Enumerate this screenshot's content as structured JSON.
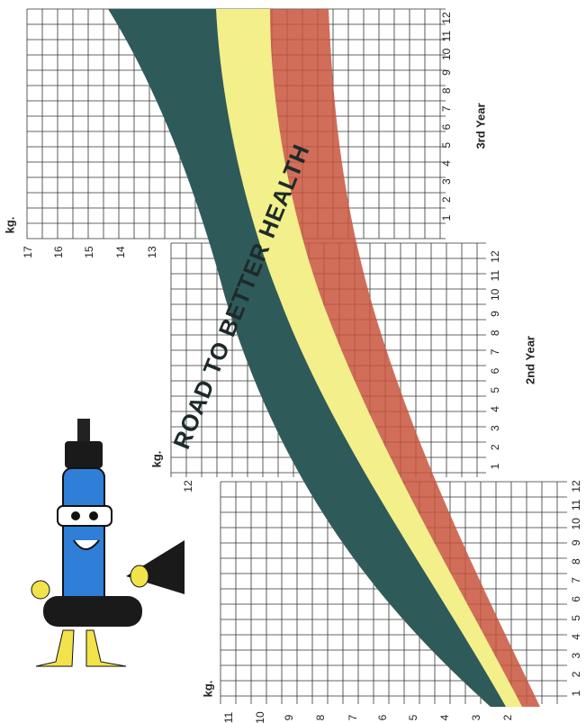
{
  "panels": [
    {
      "kg_unit": "kg.",
      "kg_labels": [
        "11",
        "10",
        "9",
        "8",
        "7",
        "6",
        "5",
        "4",
        "3",
        "2"
      ],
      "months": [
        "1",
        "2",
        "3",
        "4",
        "5",
        "6",
        "7",
        "8",
        "9",
        "10",
        "11",
        "12"
      ]
    },
    {
      "kg_unit": "kg.",
      "kg_labels": [
        "12"
      ],
      "months": [
        "1",
        "2",
        "3",
        "4",
        "5",
        "6",
        "7",
        "8",
        "9",
        "10",
        "11",
        "12"
      ],
      "year": "2nd Year"
    },
    {
      "kg_unit": "kg.",
      "kg_labels": [
        "17",
        "16",
        "15",
        "14",
        "13"
      ],
      "months": [
        "1",
        "2",
        "3",
        "4",
        "5",
        "6",
        "7",
        "8",
        "9",
        "10",
        "11",
        "12"
      ],
      "year": "3rd Year"
    }
  ],
  "banner": "ROAD TO BETTER HEALTH"
}
